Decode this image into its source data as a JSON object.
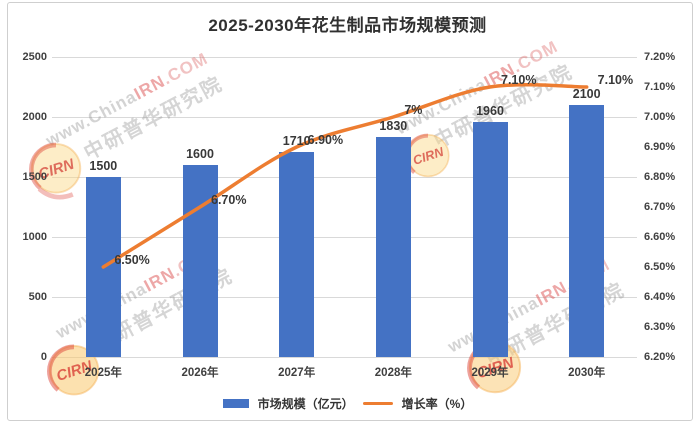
{
  "title": "2025-2030年花生制品市场规模预测",
  "chart_data": {
    "type": "bar",
    "title": "2025-2030年花生制品市场规模预测",
    "categories": [
      "2025年",
      "2026年",
      "2027年",
      "2028年",
      "2029年",
      "2030年"
    ],
    "series": [
      {
        "name": "市场规模（亿元）",
        "type": "bar",
        "axis": "left",
        "color": "#4472C4",
        "values": [
          1500,
          1600,
          1710,
          1830,
          1960,
          2100
        ],
        "labels": [
          "1500",
          "1600",
          "1710",
          "1830",
          "1960",
          "2100"
        ]
      },
      {
        "name": "增长率（%）",
        "type": "line",
        "axis": "right",
        "color": "#ED7D31",
        "values": [
          6.5,
          6.7,
          6.9,
          7.0,
          7.1,
          7.1
        ],
        "labels": [
          "6.50%",
          "6.70%",
          "6.90%",
          "7%",
          "7.10%",
          "7.10%"
        ]
      }
    ],
    "left_axis": {
      "min": 0,
      "max": 2500,
      "step": 500,
      "ticks": [
        "2500",
        "2000",
        "1500",
        "1000",
        "500",
        "0"
      ]
    },
    "right_axis": {
      "min": 6.2,
      "max": 7.2,
      "step": 0.1,
      "ticks": [
        "7.20%",
        "7.10%",
        "7.00%",
        "6.90%",
        "6.80%",
        "6.70%",
        "6.60%",
        "6.50%",
        "6.40%",
        "6.30%",
        "6.20%"
      ]
    },
    "grid": true,
    "legend_position": "bottom"
  },
  "legend": {
    "bar_label": "市场规模（亿元）",
    "line_label": "增长率（%）"
  },
  "watermark": {
    "url_prefix": "www.China",
    "url_accent": "IRN",
    "url_suffix": ".COM",
    "org_name": "中研普华研究院",
    "badge_text": "CIRN"
  },
  "colors": {
    "bar": "#4472C4",
    "line": "#ED7D31",
    "grid": "#D9D9D9",
    "axis_text": "#404040",
    "title_text": "#303030"
  }
}
